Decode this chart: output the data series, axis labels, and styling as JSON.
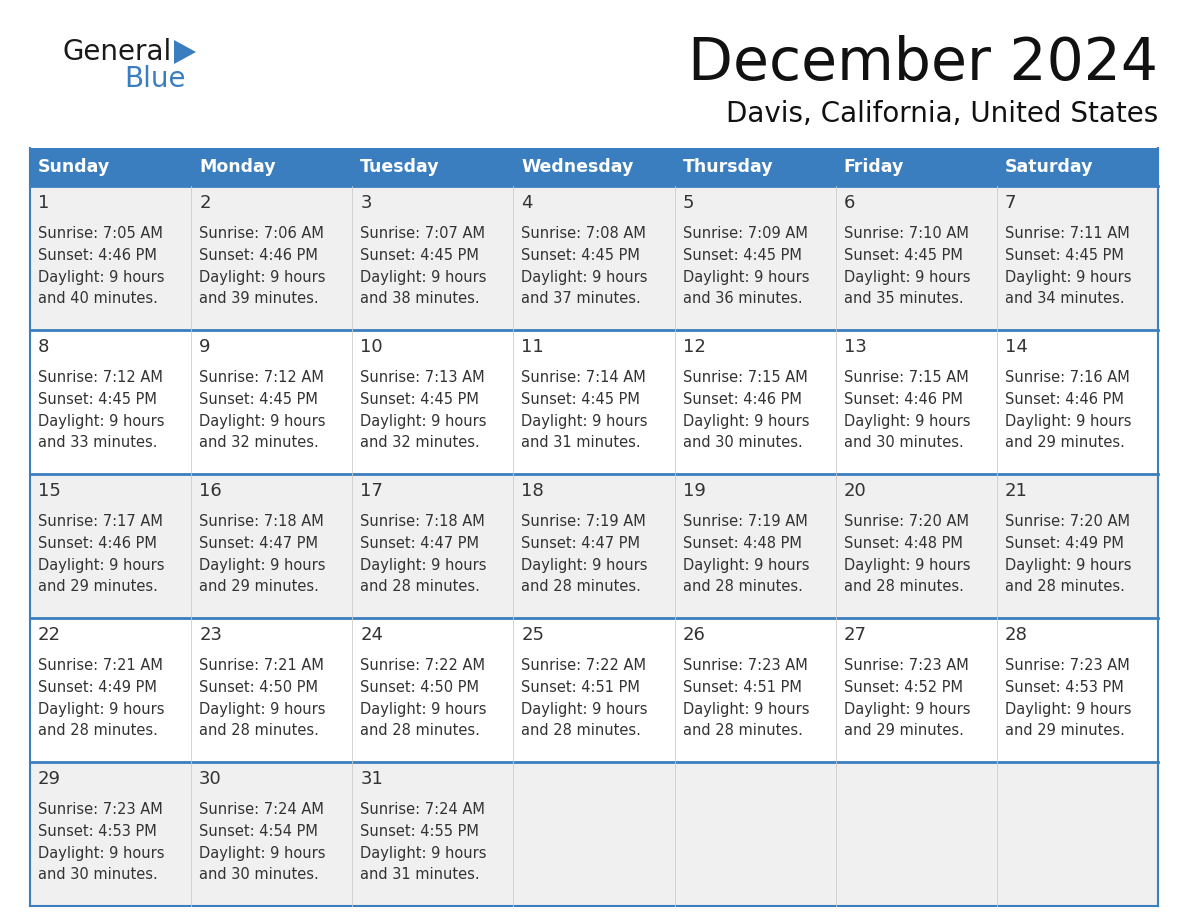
{
  "title": "December 2024",
  "subtitle": "Davis, California, United States",
  "header_color": "#3a7ebf",
  "header_text_color": "#ffffff",
  "day_names": [
    "Sunday",
    "Monday",
    "Tuesday",
    "Wednesday",
    "Thursday",
    "Friday",
    "Saturday"
  ],
  "row_bg_odd": "#f0f0f0",
  "row_bg_even": "#ffffff",
  "text_color": "#333333",
  "logo_general_color": "#1a1a1a",
  "logo_blue_color": "#3a7ebf",
  "logo_triangle_color": "#3a7ebf",
  "cal_data": [
    {
      "day": 1,
      "col": 0,
      "row": 0,
      "sunrise": "7:05 AM",
      "sunset": "4:46 PM",
      "daylight_min": "and 40 minutes."
    },
    {
      "day": 2,
      "col": 1,
      "row": 0,
      "sunrise": "7:06 AM",
      "sunset": "4:46 PM",
      "daylight_min": "and 39 minutes."
    },
    {
      "day": 3,
      "col": 2,
      "row": 0,
      "sunrise": "7:07 AM",
      "sunset": "4:45 PM",
      "daylight_min": "and 38 minutes."
    },
    {
      "day": 4,
      "col": 3,
      "row": 0,
      "sunrise": "7:08 AM",
      "sunset": "4:45 PM",
      "daylight_min": "and 37 minutes."
    },
    {
      "day": 5,
      "col": 4,
      "row": 0,
      "sunrise": "7:09 AM",
      "sunset": "4:45 PM",
      "daylight_min": "and 36 minutes."
    },
    {
      "day": 6,
      "col": 5,
      "row": 0,
      "sunrise": "7:10 AM",
      "sunset": "4:45 PM",
      "daylight_min": "and 35 minutes."
    },
    {
      "day": 7,
      "col": 6,
      "row": 0,
      "sunrise": "7:11 AM",
      "sunset": "4:45 PM",
      "daylight_min": "and 34 minutes."
    },
    {
      "day": 8,
      "col": 0,
      "row": 1,
      "sunrise": "7:12 AM",
      "sunset": "4:45 PM",
      "daylight_min": "and 33 minutes."
    },
    {
      "day": 9,
      "col": 1,
      "row": 1,
      "sunrise": "7:12 AM",
      "sunset": "4:45 PM",
      "daylight_min": "and 32 minutes."
    },
    {
      "day": 10,
      "col": 2,
      "row": 1,
      "sunrise": "7:13 AM",
      "sunset": "4:45 PM",
      "daylight_min": "and 32 minutes."
    },
    {
      "day": 11,
      "col": 3,
      "row": 1,
      "sunrise": "7:14 AM",
      "sunset": "4:45 PM",
      "daylight_min": "and 31 minutes."
    },
    {
      "day": 12,
      "col": 4,
      "row": 1,
      "sunrise": "7:15 AM",
      "sunset": "4:46 PM",
      "daylight_min": "and 30 minutes."
    },
    {
      "day": 13,
      "col": 5,
      "row": 1,
      "sunrise": "7:15 AM",
      "sunset": "4:46 PM",
      "daylight_min": "and 30 minutes."
    },
    {
      "day": 14,
      "col": 6,
      "row": 1,
      "sunrise": "7:16 AM",
      "sunset": "4:46 PM",
      "daylight_min": "and 29 minutes."
    },
    {
      "day": 15,
      "col": 0,
      "row": 2,
      "sunrise": "7:17 AM",
      "sunset": "4:46 PM",
      "daylight_min": "and 29 minutes."
    },
    {
      "day": 16,
      "col": 1,
      "row": 2,
      "sunrise": "7:18 AM",
      "sunset": "4:47 PM",
      "daylight_min": "and 29 minutes."
    },
    {
      "day": 17,
      "col": 2,
      "row": 2,
      "sunrise": "7:18 AM",
      "sunset": "4:47 PM",
      "daylight_min": "and 28 minutes."
    },
    {
      "day": 18,
      "col": 3,
      "row": 2,
      "sunrise": "7:19 AM",
      "sunset": "4:47 PM",
      "daylight_min": "and 28 minutes."
    },
    {
      "day": 19,
      "col": 4,
      "row": 2,
      "sunrise": "7:19 AM",
      "sunset": "4:48 PM",
      "daylight_min": "and 28 minutes."
    },
    {
      "day": 20,
      "col": 5,
      "row": 2,
      "sunrise": "7:20 AM",
      "sunset": "4:48 PM",
      "daylight_min": "and 28 minutes."
    },
    {
      "day": 21,
      "col": 6,
      "row": 2,
      "sunrise": "7:20 AM",
      "sunset": "4:49 PM",
      "daylight_min": "and 28 minutes."
    },
    {
      "day": 22,
      "col": 0,
      "row": 3,
      "sunrise": "7:21 AM",
      "sunset": "4:49 PM",
      "daylight_min": "and 28 minutes."
    },
    {
      "day": 23,
      "col": 1,
      "row": 3,
      "sunrise": "7:21 AM",
      "sunset": "4:50 PM",
      "daylight_min": "and 28 minutes."
    },
    {
      "day": 24,
      "col": 2,
      "row": 3,
      "sunrise": "7:22 AM",
      "sunset": "4:50 PM",
      "daylight_min": "and 28 minutes."
    },
    {
      "day": 25,
      "col": 3,
      "row": 3,
      "sunrise": "7:22 AM",
      "sunset": "4:51 PM",
      "daylight_min": "and 28 minutes."
    },
    {
      "day": 26,
      "col": 4,
      "row": 3,
      "sunrise": "7:23 AM",
      "sunset": "4:51 PM",
      "daylight_min": "and 28 minutes."
    },
    {
      "day": 27,
      "col": 5,
      "row": 3,
      "sunrise": "7:23 AM",
      "sunset": "4:52 PM",
      "daylight_min": "and 29 minutes."
    },
    {
      "day": 28,
      "col": 6,
      "row": 3,
      "sunrise": "7:23 AM",
      "sunset": "4:53 PM",
      "daylight_min": "and 29 minutes."
    },
    {
      "day": 29,
      "col": 0,
      "row": 4,
      "sunrise": "7:23 AM",
      "sunset": "4:53 PM",
      "daylight_min": "and 30 minutes."
    },
    {
      "day": 30,
      "col": 1,
      "row": 4,
      "sunrise": "7:24 AM",
      "sunset": "4:54 PM",
      "daylight_min": "and 30 minutes."
    },
    {
      "day": 31,
      "col": 2,
      "row": 4,
      "sunrise": "7:24 AM",
      "sunset": "4:55 PM",
      "daylight_min": "and 31 minutes."
    }
  ]
}
